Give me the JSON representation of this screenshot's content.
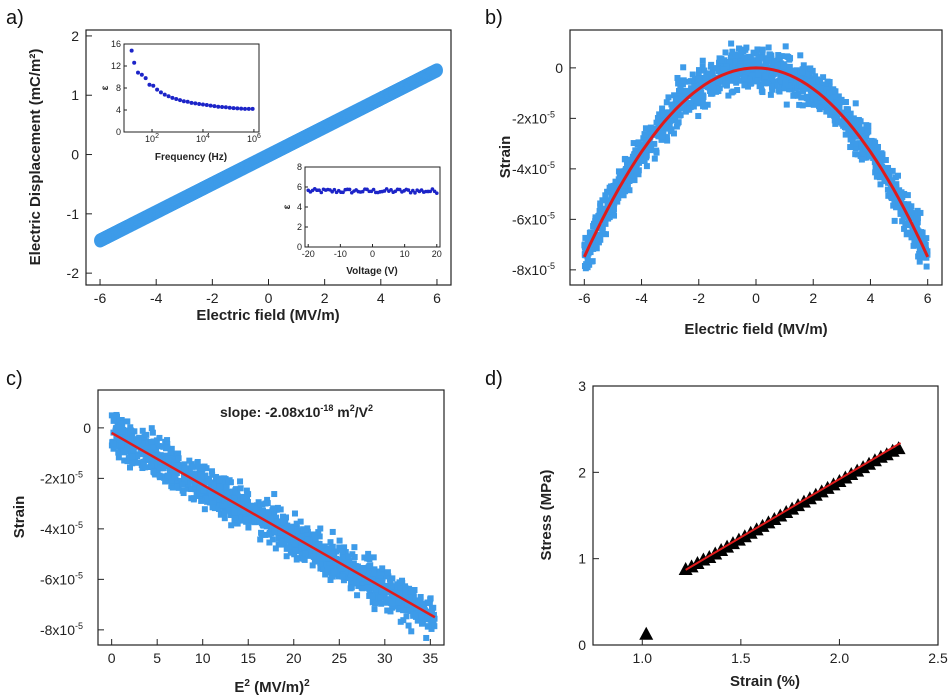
{
  "colors": {
    "scatter": "#3d9be9",
    "fit": "#e01b1b",
    "inset": "#1c24c8",
    "triangle": "#000000"
  },
  "chart_data": [
    {
      "id": "a",
      "panel_label": "a)",
      "type": "scatter",
      "xlabel": "Electric field (MV/m)",
      "ylabel": "Electric Displacement (mC/m²)",
      "xlim": [
        -6.5,
        6.5
      ],
      "ylim": [
        -2.2,
        2.1
      ],
      "xticks": [
        -6,
        -4,
        -2,
        0,
        2,
        4,
        6
      ],
      "yticks": [
        -2,
        -1,
        0,
        1,
        2
      ],
      "x_tick_labels": [
        "-6",
        "-4",
        "-2",
        "0",
        "2",
        "4",
        "6"
      ],
      "y_tick_labels": [
        "-2",
        "-1",
        "0",
        "1",
        "2"
      ],
      "series": [
        {
          "x_range": [
            -6,
            6
          ],
          "y_range": [
            -1.45,
            1.42
          ],
          "points": 121
        }
      ],
      "insets": [
        {
          "id": "freq",
          "type": "scatter",
          "xlabel": "Frequency (Hz)",
          "ylabel": "ε",
          "xscale": "log",
          "xlim_log10": [
            0.9,
            6.2
          ],
          "ylim": [
            0,
            16
          ],
          "yticks": [
            0,
            4,
            8,
            12,
            16
          ],
          "y_tick_labels": [
            "0",
            "4",
            "8",
            "12",
            "16"
          ],
          "xticks_log10": [
            2,
            4,
            6
          ],
          "x_tick_base": "10",
          "x_tick_exps": [
            "2",
            "4",
            "6"
          ],
          "x": [
            1.2,
            1.3,
            1.45,
            1.6,
            1.75,
            1.9,
            2.05,
            2.2,
            2.35,
            2.5,
            2.65,
            2.8,
            2.95,
            3.1,
            3.25,
            3.4,
            3.55,
            3.7,
            3.85,
            4.0,
            4.15,
            4.3,
            4.45,
            4.6,
            4.75,
            4.9,
            5.05,
            5.2,
            5.35,
            5.5,
            5.65,
            5.8,
            5.95
          ],
          "y": [
            14.8,
            12.6,
            10.8,
            10.4,
            9.8,
            8.6,
            8.4,
            7.7,
            7.2,
            6.8,
            6.5,
            6.2,
            6.0,
            5.8,
            5.6,
            5.5,
            5.3,
            5.2,
            5.1,
            5.0,
            4.9,
            4.8,
            4.7,
            4.6,
            4.55,
            4.5,
            4.4,
            4.35,
            4.3,
            4.25,
            4.2,
            4.2,
            4.2
          ]
        },
        {
          "id": "volt",
          "type": "scatter",
          "xlabel": "Voltage (V)",
          "ylabel": "ε",
          "xlim": [
            -21,
            21
          ],
          "ylim": [
            0,
            8
          ],
          "xticks": [
            -20,
            -10,
            0,
            10,
            20
          ],
          "x_tick_labels": [
            "-20",
            "-10",
            "0",
            "10",
            "20"
          ],
          "yticks": [
            0,
            2,
            4,
            6,
            8
          ],
          "y_tick_labels": [
            "0",
            "2",
            "4",
            "6",
            "8"
          ],
          "series": [
            {
              "x_range": [
                -20,
                20
              ],
              "y_mean": 5.6,
              "points": 60
            }
          ]
        }
      ]
    },
    {
      "id": "b",
      "panel_label": "b)",
      "type": "scatter",
      "xlabel": "Electric field (MV/m)",
      "ylabel": "Strain",
      "xlim": [
        -6.5,
        6.5
      ],
      "ylim": [
        -8.6e-05,
        1.5e-05
      ],
      "xticks": [
        -6,
        -4,
        -2,
        0,
        2,
        4,
        6
      ],
      "x_tick_labels": [
        "-6",
        "-4",
        "-2",
        "0",
        "2",
        "4",
        "6"
      ],
      "yticks": [
        0,
        -2e-05,
        -4e-05,
        -6e-05,
        -8e-05
      ],
      "y_tick_mant": [
        "0",
        "-2x10",
        "-4x10",
        "-6x10",
        "-8x10"
      ],
      "y_tick_exp": [
        "",
        "-5",
        "-5",
        "-5",
        "-5"
      ],
      "fit": {
        "type": "parabola",
        "coef_per_E2": -2.08e-06,
        "x_range": [
          -6,
          6
        ]
      },
      "series": [
        {
          "x_range": [
            -6,
            6
          ],
          "points": 1400
        }
      ]
    },
    {
      "id": "c",
      "panel_label": "c)",
      "type": "scatter",
      "xlabel_base": "E",
      "xlabel_sup": "2",
      "xlabel_rest": " (MV/m)",
      "xlabel_sup2": "2",
      "ylabel": "Strain",
      "xlim": [
        -1.5,
        36.5
      ],
      "ylim": [
        -8.6e-05,
        1.5e-05
      ],
      "xticks": [
        0,
        5,
        10,
        15,
        20,
        25,
        30,
        35
      ],
      "x_tick_labels": [
        "0",
        "5",
        "10",
        "15",
        "20",
        "25",
        "30",
        "35"
      ],
      "yticks": [
        0,
        -2e-05,
        -4e-05,
        -6e-05,
        -8e-05
      ],
      "y_tick_mant": [
        "0",
        "-2x10",
        "-4x10",
        "-6x10",
        "-8x10"
      ],
      "y_tick_exp": [
        "",
        "-5",
        "-5",
        "-5",
        "-5"
      ],
      "annotation": {
        "prefix": "slope: -2.08x10",
        "exp1": "-18",
        "mid": " m",
        "exp2": "2",
        "slash": "/V",
        "exp3": "2"
      },
      "fit": {
        "type": "line",
        "x": [
          0,
          35.5
        ],
        "y": [
          -2e-06,
          -7.5e-05
        ]
      },
      "series": [
        {
          "x_range": [
            0,
            35.5
          ],
          "points": 1400
        }
      ]
    },
    {
      "id": "d",
      "panel_label": "d)",
      "type": "scatter",
      "xlabel": "Strain (%)",
      "ylabel": "Stress (MPa)",
      "xlim": [
        0.75,
        2.5
      ],
      "ylim": [
        0,
        3
      ],
      "xticks": [
        1.0,
        1.5,
        2.0,
        2.5
      ],
      "x_tick_labels": [
        "1.0",
        "1.5",
        "2.0",
        "2.5"
      ],
      "yticks": [
        0,
        1,
        2,
        3
      ],
      "y_tick_labels": [
        "0",
        "1",
        "2",
        "3"
      ],
      "x": [
        1.02,
        1.22,
        1.25,
        1.28,
        1.31,
        1.34,
        1.37,
        1.4,
        1.43,
        1.46,
        1.49,
        1.52,
        1.55,
        1.58,
        1.61,
        1.64,
        1.67,
        1.7,
        1.73,
        1.76,
        1.79,
        1.82,
        1.85,
        1.88,
        1.91,
        1.94,
        1.97,
        2.0,
        2.03,
        2.06,
        2.09,
        2.12,
        2.15,
        2.18,
        2.21,
        2.24,
        2.27,
        2.3
      ],
      "y": [
        0.13,
        0.88,
        0.91,
        0.95,
        0.99,
        1.02,
        1.06,
        1.1,
        1.14,
        1.18,
        1.22,
        1.26,
        1.3,
        1.34,
        1.38,
        1.42,
        1.46,
        1.5,
        1.54,
        1.58,
        1.62,
        1.66,
        1.7,
        1.74,
        1.78,
        1.82,
        1.86,
        1.9,
        1.94,
        1.98,
        2.02,
        2.06,
        2.1,
        2.14,
        2.18,
        2.21,
        2.25,
        2.28
      ],
      "fit": {
        "type": "line",
        "x": [
          1.22,
          2.31
        ],
        "y": [
          0.87,
          2.34
        ]
      }
    }
  ]
}
